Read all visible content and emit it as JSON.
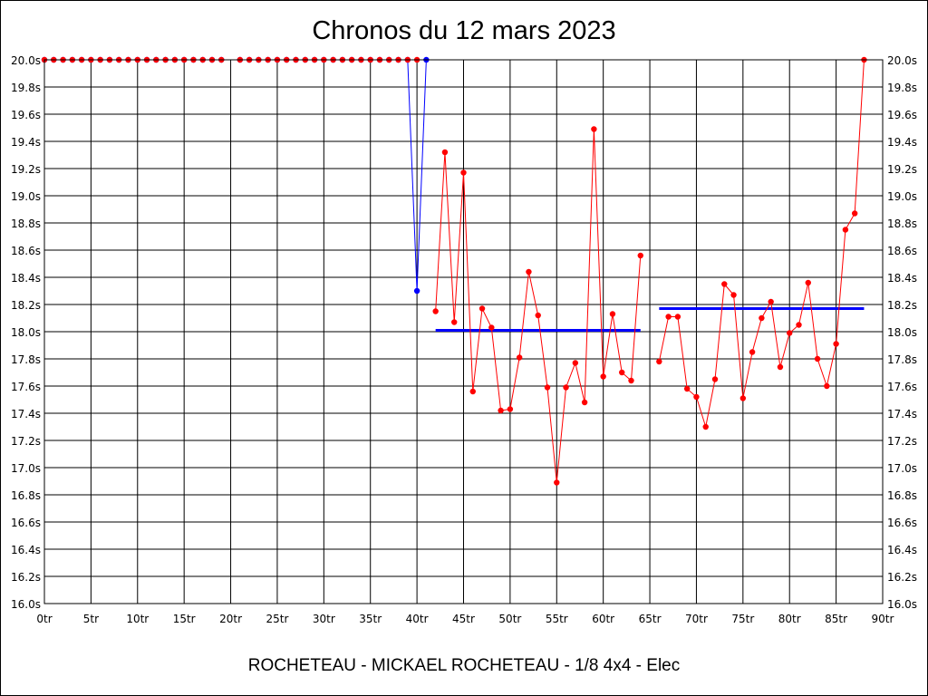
{
  "chart_data": {
    "type": "line",
    "title": "Chronos du 12 mars 2023",
    "subtitle": "ROCHETEAU - MICKAEL ROCHETEAU - 1/8 4x4 - Elec",
    "x_unit": "tr",
    "y_unit": "s",
    "xlim": [
      0,
      90
    ],
    "ylim": [
      16.0,
      20.0
    ],
    "x_ticks": [
      0,
      5,
      10,
      15,
      20,
      25,
      30,
      35,
      40,
      45,
      50,
      55,
      60,
      65,
      70,
      75,
      80,
      85,
      90
    ],
    "x_tick_labels": [
      "0tr",
      "5tr",
      "10tr",
      "15tr",
      "20tr",
      "25tr",
      "30tr",
      "35tr",
      "40tr",
      "45tr",
      "50tr",
      "55tr",
      "60tr",
      "65tr",
      "70tr",
      "75tr",
      "80tr",
      "85tr",
      "90tr"
    ],
    "y_ticks": [
      16.0,
      16.2,
      16.4,
      16.6,
      16.8,
      17.0,
      17.2,
      17.4,
      17.6,
      17.8,
      18.0,
      18.2,
      18.4,
      18.6,
      18.8,
      19.0,
      19.2,
      19.4,
      19.6,
      19.8,
      20.0
    ],
    "y_tick_labels": [
      "16.0s",
      "16.2s",
      "16.4s",
      "16.6s",
      "16.8s",
      "17.0s",
      "17.2s",
      "17.4s",
      "17.6s",
      "17.8s",
      "18.0s",
      "18.2s",
      "18.4s",
      "18.6s",
      "18.8s",
      "19.0s",
      "19.2s",
      "19.4s",
      "19.6s",
      "19.8s",
      "20.0s"
    ],
    "grid": true,
    "series": [
      {
        "color": "#0000ff",
        "marker_color": "#0000ff",
        "segments": [
          {
            "x": [
              0,
              1,
              2,
              3,
              4,
              5,
              6,
              7,
              8,
              9,
              10,
              11,
              12,
              13,
              14,
              15,
              16,
              17,
              18,
              19
            ],
            "y": [
              20.0,
              20.0,
              20.0,
              20.0,
              20.0,
              20.0,
              20.0,
              20.0,
              20.0,
              20.0,
              20.0,
              20.0,
              20.0,
              20.0,
              20.0,
              20.0,
              20.0,
              20.0,
              20.0,
              20.0
            ]
          },
          {
            "x": [
              21,
              22,
              23,
              24,
              25,
              26,
              27,
              28,
              29,
              30,
              31,
              32,
              33,
              34,
              35,
              36,
              37,
              38,
              39,
              40,
              41
            ],
            "y": [
              20.0,
              20.0,
              20.0,
              20.0,
              20.0,
              20.0,
              20.0,
              20.0,
              20.0,
              20.0,
              20.0,
              20.0,
              20.0,
              20.0,
              20.0,
              20.0,
              20.0,
              20.0,
              20.0,
              18.3,
              20.0
            ]
          }
        ]
      },
      {
        "color": "#ff0000",
        "marker_color": "#ff0000",
        "segments": [
          {
            "x": [
              0,
              1,
              2,
              3,
              4,
              5,
              6,
              7,
              8,
              9,
              10,
              11,
              12,
              13,
              14,
              15,
              16,
              17,
              18,
              19
            ],
            "y": [
              20.0,
              20.0,
              20.0,
              20.0,
              20.0,
              20.0,
              20.0,
              20.0,
              20.0,
              20.0,
              20.0,
              20.0,
              20.0,
              20.0,
              20.0,
              20.0,
              20.0,
              20.0,
              20.0,
              20.0
            ]
          },
          {
            "x": [
              21,
              22,
              23,
              24,
              25,
              26,
              27,
              28,
              29,
              30,
              31,
              32,
              33,
              34,
              35,
              36,
              37,
              38,
              39,
              40
            ],
            "y": [
              20.0,
              20.0,
              20.0,
              20.0,
              20.0,
              20.0,
              20.0,
              20.0,
              20.0,
              20.0,
              20.0,
              20.0,
              20.0,
              20.0,
              20.0,
              20.0,
              20.0,
              20.0,
              20.0,
              20.0
            ]
          },
          {
            "x": [
              42,
              43,
              44,
              45,
              46,
              47,
              48,
              49,
              50,
              51,
              52,
              53,
              54,
              55,
              56,
              57,
              58,
              59,
              60,
              61,
              62,
              63,
              64
            ],
            "y": [
              18.15,
              19.32,
              18.07,
              19.17,
              17.56,
              18.17,
              18.03,
              17.42,
              17.43,
              17.81,
              18.44,
              18.12,
              17.59,
              16.89,
              17.59,
              17.77,
              17.48,
              19.49,
              17.67,
              18.13,
              17.7,
              17.64,
              18.56
            ]
          },
          {
            "x": [
              66,
              67,
              68,
              69,
              70,
              71,
              72,
              73,
              74,
              75,
              76,
              77,
              78,
              79,
              80,
              81,
              82,
              83,
              84,
              85,
              86,
              87,
              88
            ],
            "y": [
              17.78,
              18.11,
              18.11,
              17.58,
              17.52,
              17.3,
              17.65,
              18.35,
              18.27,
              17.51,
              17.85,
              18.1,
              18.22,
              17.74,
              17.99,
              18.05,
              18.36,
              17.8,
              17.6,
              17.91,
              18.75,
              18.87,
              20.0
            ]
          }
        ]
      }
    ],
    "averages": [
      {
        "x_start": 42,
        "x_end": 64,
        "y": 18.01,
        "color": "#0000ff"
      },
      {
        "x_start": 66,
        "x_end": 88,
        "y": 18.17,
        "color": "#0000ff"
      }
    ]
  }
}
